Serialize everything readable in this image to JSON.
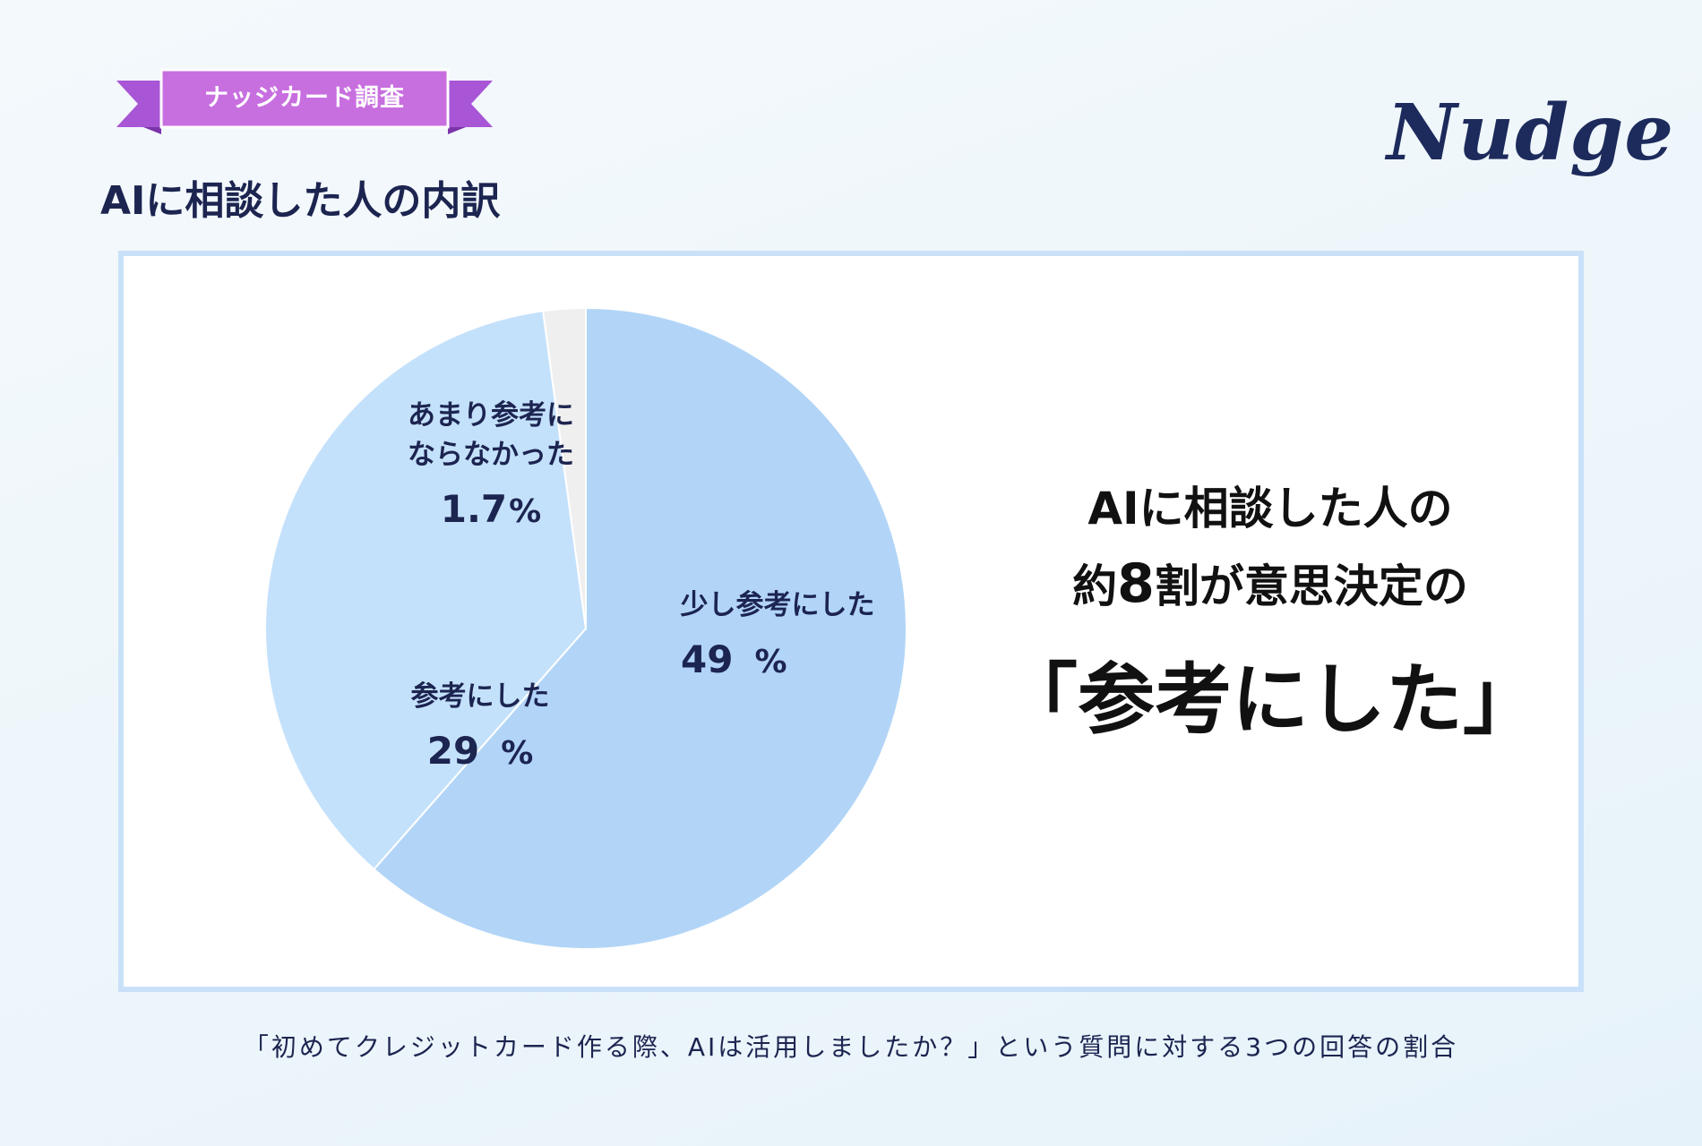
{
  "badge": {
    "label": "ナッジカード調査"
  },
  "page_title": "AIに相談した人の内訳",
  "logo": {
    "text": "Nudge"
  },
  "headline": {
    "line1": "AIに相談した人の",
    "line2_prefix": "約",
    "line2_number": "8",
    "line2_suffix": "割が意思決定の",
    "line3": "「参考にした」"
  },
  "footnote": "「初めてクレジットカード作る際、AIは活用しましたか？」という質問に対する3つの回答の割合",
  "chart_data": {
    "type": "pie",
    "start": "12 o'clock, clockwise",
    "slices": [
      {
        "label": "少し参考にした",
        "value": 49,
        "display": "49",
        "unit": "%",
        "color": "#b2d5f7"
      },
      {
        "label": "参考にした",
        "value": 29,
        "display": "29",
        "unit": "%",
        "color": "#c4e1fb"
      },
      {
        "label": "あまり参考にならなかった",
        "label_lines": [
          "あまり参考に",
          "ならなかった"
        ],
        "value": 1.7,
        "display": "1.7",
        "unit": "%",
        "color": "#efefef"
      }
    ]
  },
  "colors": {
    "text": "#1c2450",
    "badge": "#c86fe0",
    "badge_tail": "#a855d6",
    "panel_border": "#c9e1f8"
  }
}
